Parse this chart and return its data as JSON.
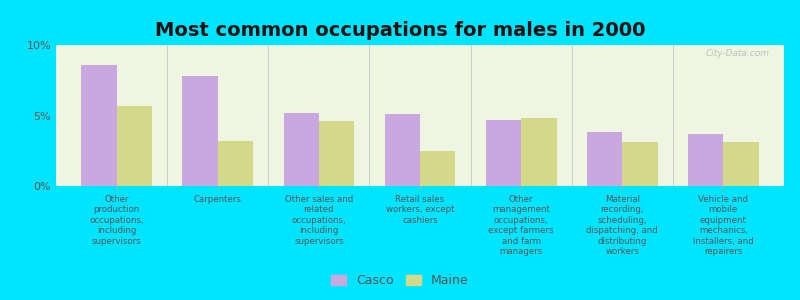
{
  "title": "Most common occupations for males in 2000",
  "categories": [
    "Other\nproduction\noccupations,\nincluding\nsupervisors",
    "Carpenters",
    "Other sales and\nrelated\noccupations,\nincluding\nsupervisors",
    "Retail sales\nworkers, except\ncashiers",
    "Other\nmanagement\noccupations,\nexcept farmers\nand farm\nmanagers",
    "Material\nrecording,\nscheduling,\ndispatching, and\ndistributing\nworkers",
    "Vehicle and\nmobile\nequipment\nmechanics,\ninstallers, and\nrepairers"
  ],
  "casco_values": [
    8.6,
    7.8,
    5.2,
    5.1,
    4.7,
    3.8,
    3.7
  ],
  "maine_values": [
    5.7,
    3.2,
    4.6,
    2.5,
    4.8,
    3.1,
    3.1
  ],
  "casco_color": "#c9a8e0",
  "maine_color": "#d4d98a",
  "background_outer": "#00e5ff",
  "background_inner": "#eef5e0",
  "ylim": [
    0,
    10
  ],
  "yticks": [
    0,
    5,
    10
  ],
  "ytick_labels": [
    "0%",
    "5%",
    "10%"
  ],
  "bar_width": 0.35,
  "legend_labels": [
    "Casco",
    "Maine"
  ],
  "title_fontsize": 14,
  "label_fontsize": 6.2,
  "tick_fontsize": 8,
  "watermark": "City-Data.com"
}
